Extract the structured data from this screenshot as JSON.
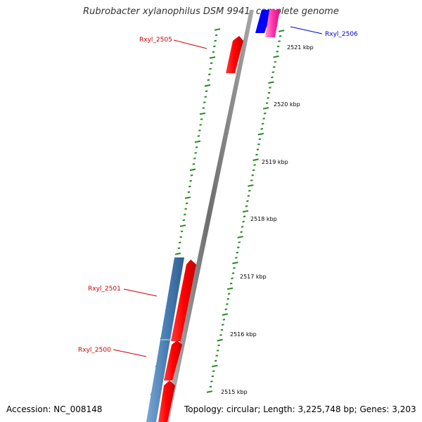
{
  "title": "Rubrobacter xylanophilus DSM 9941, complete genome",
  "footer": {
    "accession": "Accession: NC_008148",
    "topology": "Topology: circular; Length: 3,225,748 bp; Genes: 3,203"
  },
  "scale": {
    "ticks": [
      "2521 kbp",
      "2520 kbp",
      "2519 kbp",
      "2518 kbp",
      "2517 kbp",
      "2516 kbp",
      "2515 kbp"
    ]
  },
  "genes": [
    {
      "label": "Rxyl_2505",
      "color": "#cc0000",
      "strand": "reverse"
    },
    {
      "label": "Rxyl_2506",
      "color": "#0000cc",
      "strand": "forward"
    },
    {
      "label": "Rxyl_2501",
      "color": "#cc0000",
      "strand": "reverse"
    },
    {
      "label": "Rxyl_2500",
      "color": "#cc0000",
      "strand": "reverse"
    }
  ],
  "colors": {
    "gene_red": "#ff0000",
    "gene_blue": "#0000ff",
    "gene_pink": "#ff33aa",
    "track_blue": "#4a7fb5",
    "backbone": "#888888",
    "dots": "#228822"
  }
}
